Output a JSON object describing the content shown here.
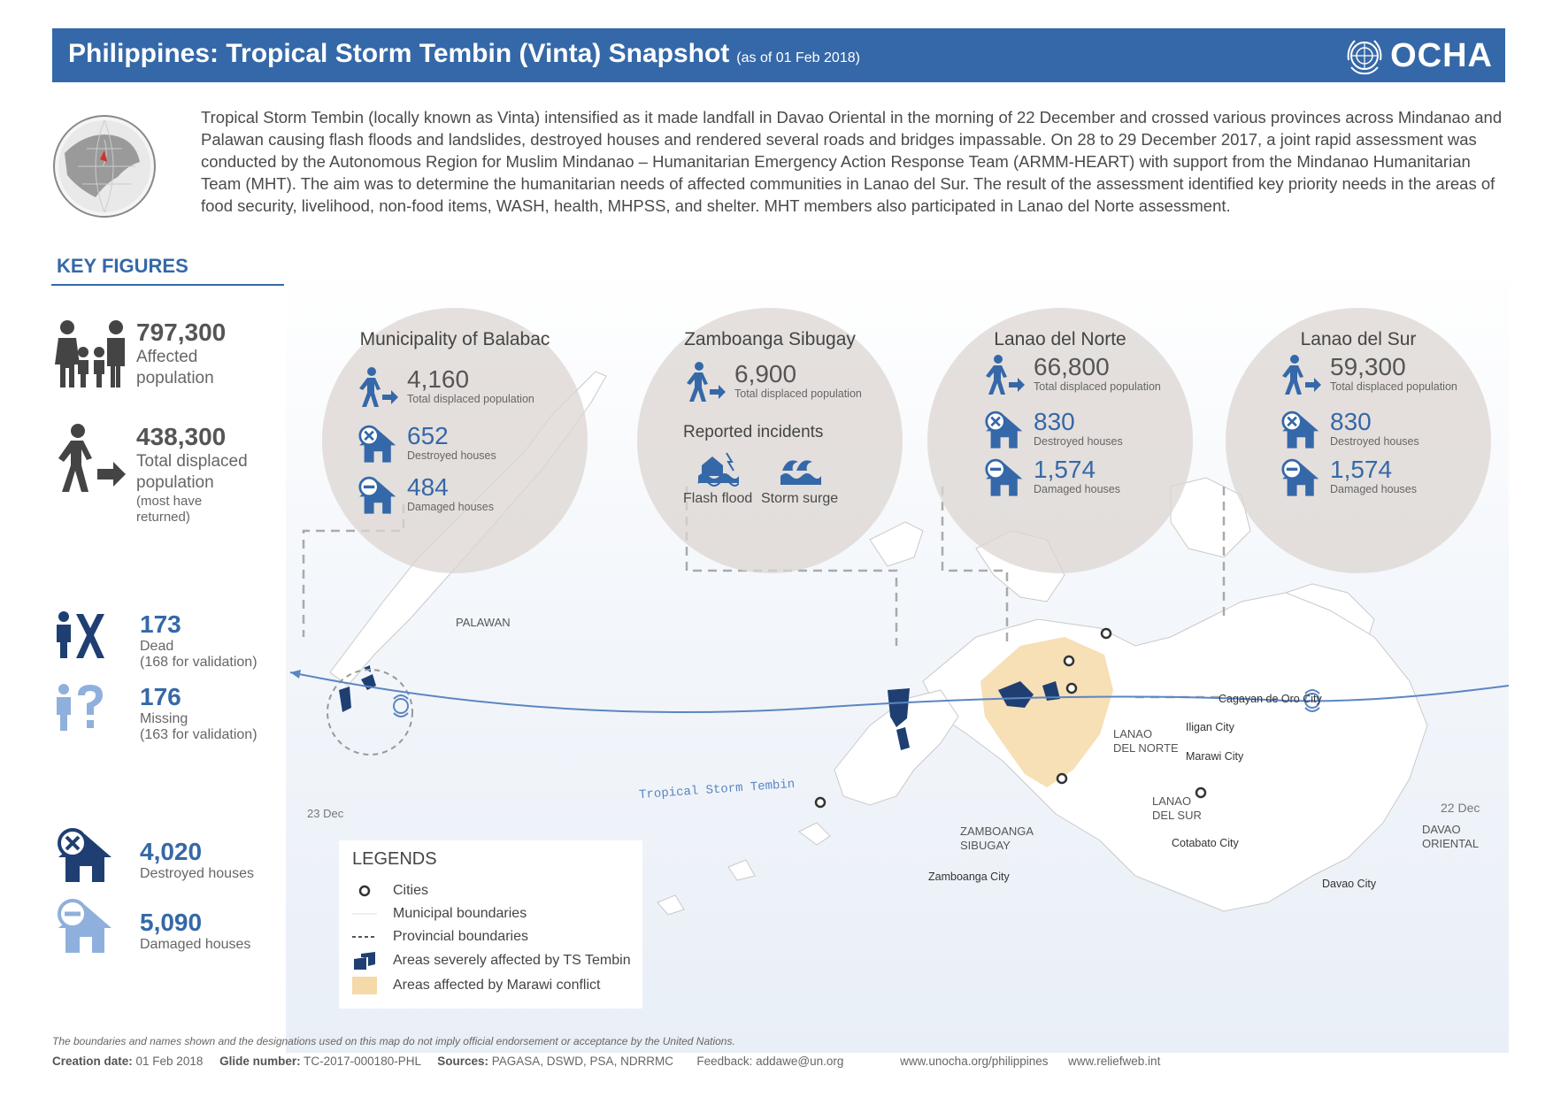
{
  "header": {
    "title": "Philippines: Tropical Storm Tembin (Vinta) Snapshot",
    "as_of": "(as of 01 Feb 2018)",
    "logo_text": "OCHA"
  },
  "intro": "Tropical Storm Tembin (locally known as Vinta) intensified as it made landfall in Davao Oriental in the morning of 22 December and crossed various provinces across Mindanao and Palawan causing flash floods and landslides, destroyed houses and rendered several roads and bridges impassable.  On 28 to 29 December 2017, a joint rapid assessment was conducted by the Autonomous Region for Muslim Mindanao – Humanitarian Emergency Action Response Team (ARMM-HEART) with support from the Mindanao Humanitarian Team (MHT). The aim was to determine the humanitarian needs of affected communities in Lanao del Sur. The result of the assessment identified key priority needs in the areas of food security, livelihood, non-food items, WASH, health, MHPSS, and shelter. MHT members also participated in Lanao del Norte assessment.",
  "key_figures": {
    "title": "KEY FIGURES",
    "affected": {
      "value": "797,300",
      "label1": "Affected",
      "label2": "population"
    },
    "displaced": {
      "value": "438,300",
      "label1": "Total displaced",
      "label2": "population",
      "note1": "(most have",
      "note2": "returned)"
    },
    "dead": {
      "value": "173",
      "label": "Dead",
      "note": "(168 for validation)"
    },
    "missing": {
      "value": "176",
      "label": "Missing",
      "note": "(163 for validation)"
    },
    "destroyed": {
      "value": "4,020",
      "label": "Destroyed houses"
    },
    "damaged": {
      "value": "5,090",
      "label": "Damaged houses"
    }
  },
  "bubbles": {
    "balabac": {
      "title": "Municipality of Balabac",
      "displaced": "4,160",
      "displaced_label": "Total displaced population",
      "destroyed": "652",
      "destroyed_label": "Destroyed houses",
      "damaged": "484",
      "damaged_label": "Damaged houses"
    },
    "zamboanga": {
      "title": "Zamboanga Sibugay",
      "displaced": "6,900",
      "displaced_label": "Total displaced population",
      "incidents_title": "Reported incidents",
      "flash_flood": "Flash flood",
      "storm_surge": "Storm surge"
    },
    "lanao_norte": {
      "title": "Lanao del Norte",
      "displaced": "66,800",
      "displaced_label": "Total displaced population",
      "destroyed": "830",
      "destroyed_label": "Destroyed houses",
      "damaged": "1,574",
      "damaged_label": "Damaged houses"
    },
    "lanao_sur": {
      "title": "Lanao del Sur",
      "displaced": "59,300",
      "displaced_label": "Total displaced population",
      "destroyed": "830",
      "destroyed_label": "Destroyed houses",
      "damaged": "1,574",
      "damaged_label": "Damaged houses"
    }
  },
  "map_labels": {
    "palawan": "PALAWAN",
    "dec23": "23 Dec",
    "dec22": "22 Dec",
    "storm_track": "Tropical Storm Tembin",
    "zamboanga_sibugay_1": "ZAMBOANGA",
    "zamboanga_sibugay_2": "SIBUGAY",
    "lanao_norte_1": "LANAO",
    "lanao_norte_2": "DEL NORTE",
    "lanao_sur_1": "LANAO",
    "lanao_sur_2": "DEL SUR",
    "davao_oriental_1": "DAVAO",
    "davao_oriental_2": "ORIENTAL"
  },
  "cities": {
    "cagayan": "Cagayan de Oro City",
    "iligan": "Iligan City",
    "marawi": "Marawi City",
    "cotabato": "Cotabato City",
    "zamboanga": "Zamboanga City",
    "davao": "Davao City"
  },
  "legend": {
    "title": "LEGENDS",
    "cities": "Cities",
    "municipal": "Municipal boundaries",
    "provincial": "Provincial boundaries",
    "severe": "Areas severely affected by TS Tembin",
    "marawi": "Areas affected by Marawi conflict"
  },
  "footer": {
    "disclaimer": "The boundaries and names shown and the designations used on this map do not imply official endorsement or acceptance by the United Nations.",
    "creation_label": "Creation date:",
    "creation_value": "01 Feb 2018",
    "glide_label": "Glide number:",
    "glide_value": "TC-2017-000180-PHL",
    "sources_label": "Sources:",
    "sources_value": "PAGASA, DSWD, PSA, NDRRMC",
    "feedback": "Feedback: addawe@un.org",
    "url1": "www.unocha.org/philippines",
    "url2": "www.reliefweb.int"
  },
  "colors": {
    "brand_blue": "#3568a8",
    "severe_fill": "#1f3f73",
    "marawi_fill": "#f6d9a9",
    "bubble_fill": "#dcd6d2"
  }
}
